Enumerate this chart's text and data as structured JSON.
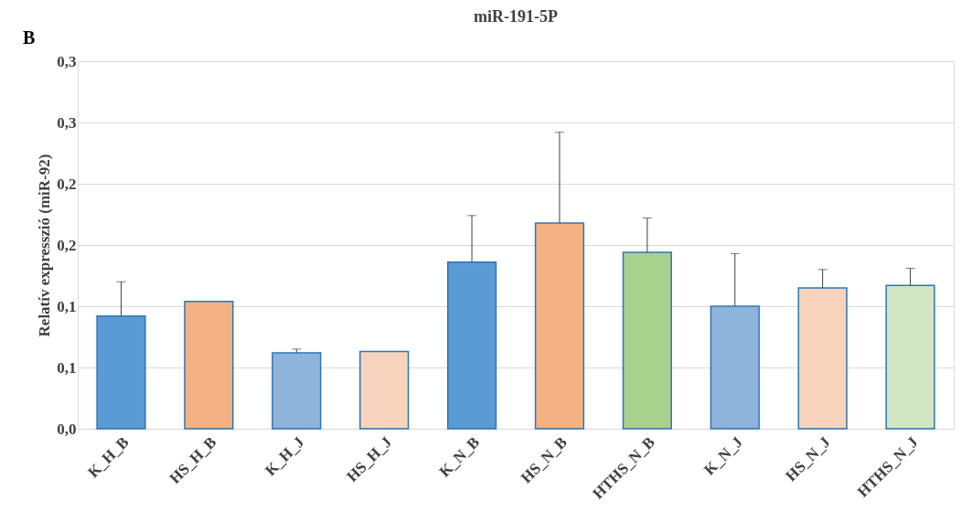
{
  "chart_data": {
    "type": "bar",
    "title": "miR-191-5P",
    "ylabel": "Relatív expresszió (miR-92)",
    "categories": [
      "K_H_B",
      "HS_H_B",
      "K_H_J",
      "HS_H_J",
      "K_N_B",
      "HS_N_B",
      "HTHS_N_B",
      "K_N_J",
      "HS_N_J",
      "HTHS_N_J"
    ],
    "values": [
      0.092,
      0.104,
      0.062,
      0.063,
      0.136,
      0.168,
      0.144,
      0.1,
      0.115,
      0.117
    ],
    "errors": [
      [
        0.092,
        0.12
      ],
      [
        0.104,
        0.104
      ],
      [
        0.062,
        0.065
      ],
      [
        0.063,
        0.063
      ],
      [
        0.136,
        0.174
      ],
      [
        0.168,
        0.242
      ],
      [
        0.144,
        0.172
      ],
      [
        0.1,
        0.143
      ],
      [
        0.115,
        0.13
      ],
      [
        0.117,
        0.131
      ]
    ],
    "colors": [
      "#5b9bd5",
      "#f4b183",
      "#8fb4dc",
      "#f8d3bb",
      "#5b9bd5",
      "#f4b183",
      "#a9d18e",
      "#8fb4dc",
      "#f8d3bb",
      "#d1e6c3"
    ],
    "ylim": [
      0,
      0.3
    ],
    "yticks": [
      {
        "value": 0,
        "label": "0,0"
      },
      {
        "value": 0.05,
        "label": "0,1"
      },
      {
        "value": 0.1,
        "label": "0,1"
      },
      {
        "value": 0.15,
        "label": "0,2"
      },
      {
        "value": 0.2,
        "label": "0,2"
      },
      {
        "value": 0.25,
        "label": "0,3"
      },
      {
        "value": 0.3,
        "label": "0,3"
      }
    ],
    "grid": "y",
    "annotations": [
      "B"
    ]
  }
}
